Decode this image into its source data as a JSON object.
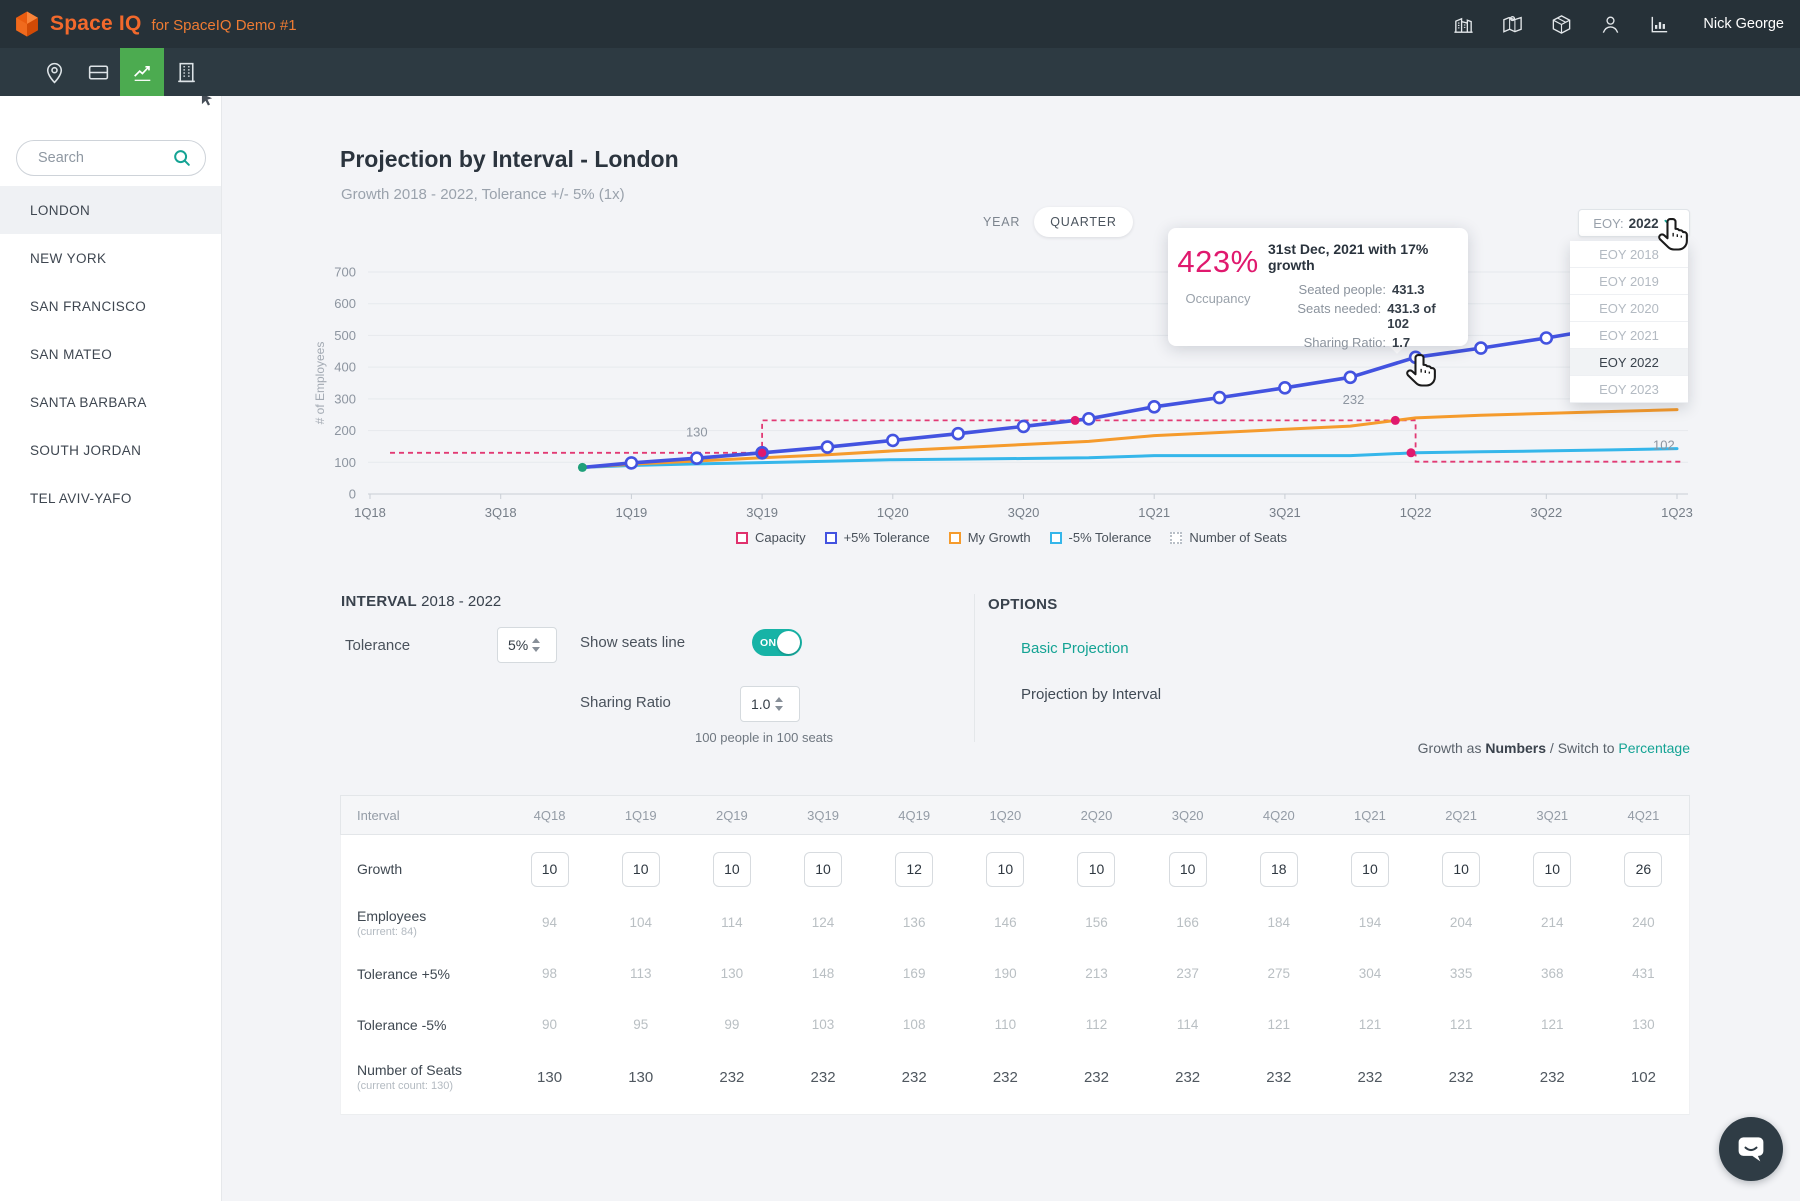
{
  "colors": {
    "accent_teal": "#14a394",
    "toggle_teal": "#17b3a6",
    "brand_orange": "#f2692c",
    "active_green": "#4cab50",
    "pink": "#e0196e",
    "capacity_pink": "#e23a74",
    "blue_line": "#4353e0",
    "orange_line": "#f59b2d",
    "cyan_line": "#35b6ea",
    "topbar_bg": "#263138",
    "navbar_bg": "#2d3a42"
  },
  "topbar": {
    "logo_text": "Space IQ",
    "logo_suffix": "for SpaceIQ Demo #1",
    "user_name": "Nick George",
    "right_icons": [
      "buildings-icon",
      "map-icon",
      "package-icon",
      "user-icon",
      "stats-icon"
    ]
  },
  "navbar": {
    "items": [
      {
        "name": "location-pin",
        "active": false
      },
      {
        "name": "floor-rows",
        "active": false
      },
      {
        "name": "growth-chart",
        "active": true
      },
      {
        "name": "building",
        "active": false
      }
    ]
  },
  "sidebar": {
    "search_placeholder": "Search",
    "items": [
      "LONDON",
      "NEW YORK",
      "SAN FRANCISCO",
      "SAN MATEO",
      "SANTA BARBARA",
      "SOUTH JORDAN",
      "TEL AVIV-YAFO"
    ],
    "selected": "LONDON"
  },
  "header": {
    "title": "Projection by Interval - London",
    "subtitle": "Growth 2018 - 2022, Tolerance +/- 5% (1x)"
  },
  "view_toggle": {
    "options": [
      "YEAR",
      "QUARTER"
    ],
    "selected": "QUARTER"
  },
  "eoy_dropdown": {
    "label": "EOY:",
    "value": "2022",
    "options": [
      "EOY 2018",
      "EOY 2019",
      "EOY 2020",
      "EOY 2021",
      "EOY 2022",
      "EOY 2023"
    ],
    "selected": "EOY 2022"
  },
  "tooltip": {
    "percent": "423%",
    "percent_label": "Occupancy",
    "title": "31st Dec, 2021 with 17% growth",
    "rows": [
      {
        "label": "Seated people:",
        "value": "431.3"
      },
      {
        "label": "Seats needed:",
        "value": "431.3 of 102"
      },
      {
        "label": "Sharing Ratio:",
        "value": "1.7"
      }
    ]
  },
  "chart_data": {
    "type": "line",
    "title": "Projection by Interval - London",
    "ylabel": "# of Employees",
    "ylim": [
      0,
      700
    ],
    "y_ticks": [
      0,
      100,
      200,
      300,
      400,
      500,
      600,
      700
    ],
    "x_ticks": [
      "1Q18",
      "3Q18",
      "1Q19",
      "3Q19",
      "1Q20",
      "3Q20",
      "1Q21",
      "3Q21",
      "1Q22",
      "3Q22",
      "1Q23"
    ],
    "quarters": [
      "4Q18",
      "1Q19",
      "2Q19",
      "3Q19",
      "4Q19",
      "1Q20",
      "2Q20",
      "3Q20",
      "4Q20",
      "1Q21",
      "2Q21",
      "3Q21",
      "4Q21"
    ],
    "start_point": {
      "v": 84
    },
    "series": [
      {
        "name": "+5% Tolerance",
        "color": "#4353e0",
        "values": [
          98,
          113,
          130,
          148,
          169,
          190,
          213,
          237,
          275,
          304,
          335,
          368,
          431
        ],
        "projected": [
          460,
          492,
          527
        ]
      },
      {
        "name": "My Growth",
        "color": "#f59b2d",
        "values": [
          94,
          104,
          114,
          124,
          136,
          146,
          156,
          166,
          184,
          194,
          204,
          214,
          240
        ],
        "projected": [
          248,
          254,
          260,
          266
        ]
      },
      {
        "name": "-5% Tolerance",
        "color": "#35b6ea",
        "values": [
          90,
          95,
          99,
          103,
          108,
          110,
          112,
          114,
          121,
          121,
          121,
          121,
          130
        ],
        "projected": [
          133,
          136,
          139,
          143
        ]
      },
      {
        "name": "Capacity",
        "color": "#e23a74",
        "style": "dashed-step",
        "values": [
          130,
          130,
          232,
          232,
          232,
          232,
          232,
          232,
          232,
          232,
          232,
          232,
          102
        ]
      }
    ],
    "legend": [
      {
        "label": "Capacity",
        "color": "#e0316d",
        "style": "dashed"
      },
      {
        "label": "+5% Tolerance",
        "color": "#4353e0",
        "style": "solid"
      },
      {
        "label": "My Growth",
        "color": "#f59b2d",
        "style": "solid"
      },
      {
        "label": "-5% Tolerance",
        "color": "#35b6ea",
        "style": "solid"
      },
      {
        "label": "Number of Seats",
        "color": "#b9bfc7",
        "style": "dotted"
      }
    ],
    "annotations": [
      {
        "text": "130",
        "t": 1.0,
        "v": 181
      },
      {
        "text": "232",
        "t": 11.05,
        "v": 283
      },
      {
        "text": "102",
        "t": 15.8,
        "v": 140
      }
    ],
    "crossing_dots": [
      {
        "t": 2,
        "v": 130
      },
      {
        "t": 6.79,
        "v": 232
      },
      {
        "t": 11.69,
        "v": 232
      },
      {
        "t": 11.93,
        "v": 130
      }
    ]
  },
  "interval_panel": {
    "heading_bold": "INTERVAL",
    "heading_range": " 2018 - 2022",
    "tolerance_label": "Tolerance",
    "tolerance_value": "5%",
    "show_seats_label": "Show seats line",
    "toggle_state": "ON",
    "sharing_ratio_label": "Sharing Ratio",
    "sharing_ratio_value": "1.0",
    "sharing_note": "100 people in 100 seats"
  },
  "options_panel": {
    "heading": "OPTIONS",
    "links": [
      {
        "label": "Basic Projection",
        "style": "link"
      },
      {
        "label": "Projection by Interval",
        "style": "current"
      }
    ]
  },
  "growth_switch": {
    "prefix": "Growth as ",
    "mode": "Numbers",
    "middle": " / Switch to ",
    "link": "Percentage"
  },
  "table": {
    "header": [
      "Interval",
      "4Q18",
      "1Q19",
      "2Q19",
      "3Q19",
      "4Q19",
      "1Q20",
      "2Q20",
      "3Q20",
      "4Q20",
      "1Q21",
      "2Q21",
      "3Q21",
      "4Q21"
    ],
    "rows": [
      {
        "label": "Growth",
        "sub": "",
        "type": "input",
        "values": [
          10,
          10,
          10,
          10,
          12,
          10,
          10,
          10,
          18,
          10,
          10,
          10,
          26
        ]
      },
      {
        "label": "Employees",
        "sub": "(current: 84)",
        "type": "muted",
        "values": [
          94,
          104,
          114,
          124,
          136,
          146,
          156,
          166,
          184,
          194,
          204,
          214,
          240
        ]
      },
      {
        "label": "Tolerance +5%",
        "sub": "",
        "type": "muted",
        "values": [
          98,
          113,
          130,
          148,
          169,
          190,
          213,
          237,
          275,
          304,
          335,
          368,
          431
        ]
      },
      {
        "label": "Tolerance -5%",
        "sub": "",
        "type": "muted",
        "values": [
          90,
          95,
          99,
          103,
          108,
          110,
          112,
          114,
          121,
          121,
          121,
          121,
          130
        ]
      },
      {
        "label": "Number of Seats",
        "sub": "(current count: 130)",
        "type": "strong",
        "values": [
          130,
          130,
          232,
          232,
          232,
          232,
          232,
          232,
          232,
          232,
          232,
          232,
          102
        ]
      }
    ]
  }
}
